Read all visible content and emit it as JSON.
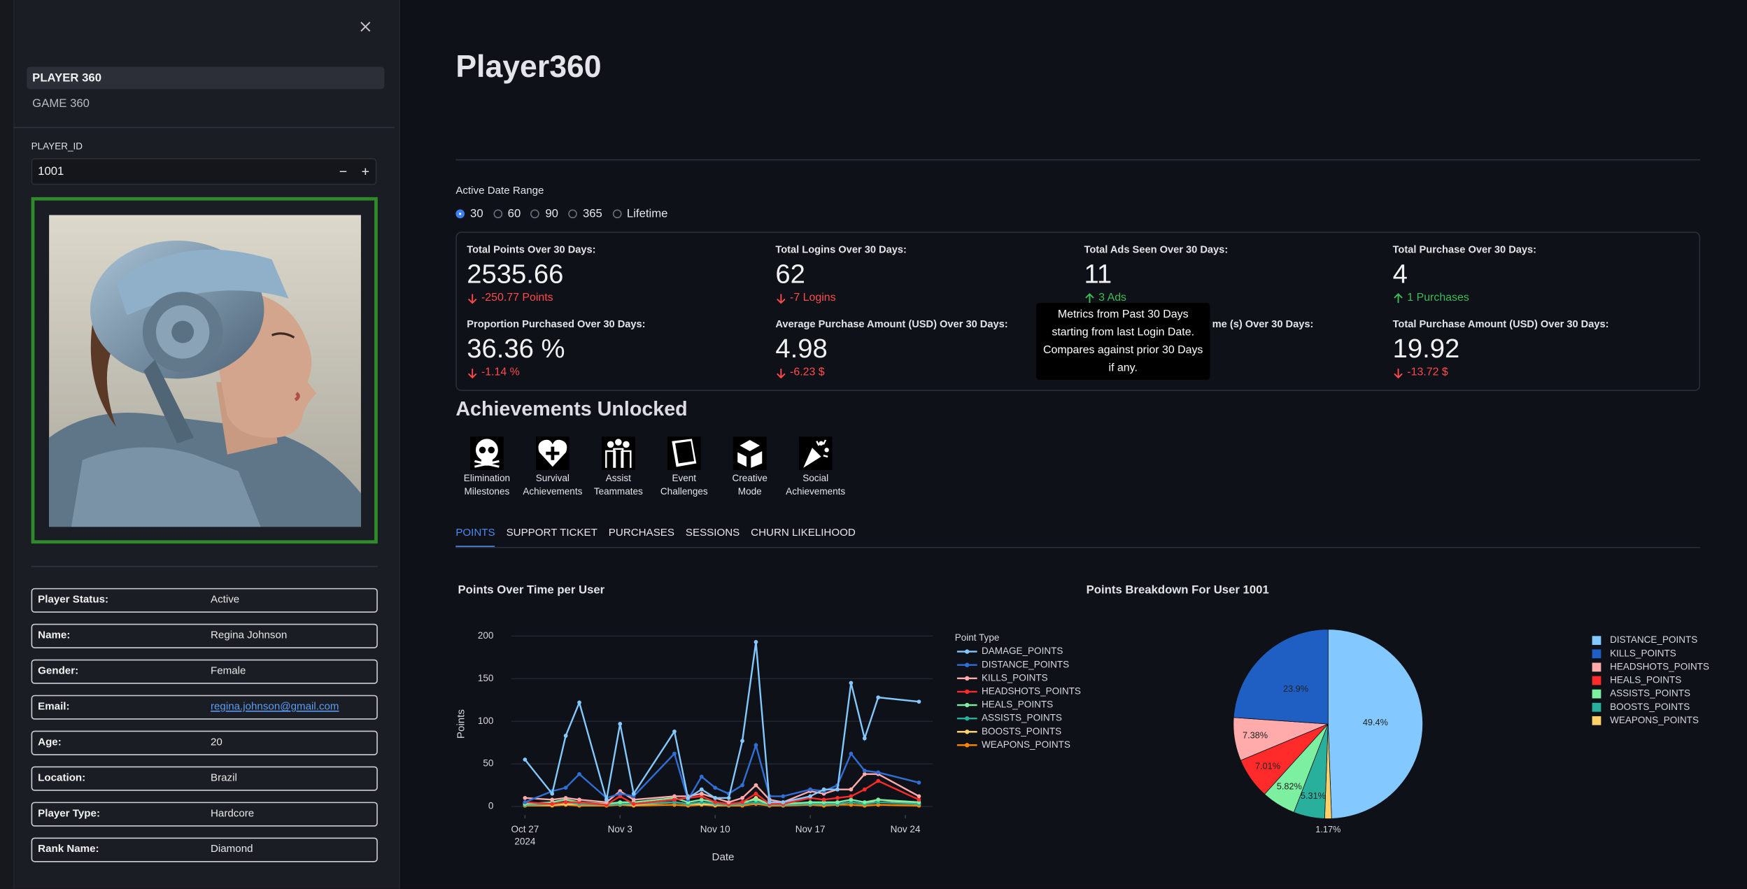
{
  "sidebar": {
    "nav": [
      "PLAYER 360",
      "GAME 360"
    ],
    "active_nav": 0,
    "player_id_label": "PLAYER_ID",
    "player_id": "1001",
    "details": [
      {
        "label": "Player Status:",
        "value": "Active"
      },
      {
        "label": "Name:",
        "value": "Regina Johnson"
      },
      {
        "label": "Gender:",
        "value": "Female"
      },
      {
        "label": "Email:",
        "value": "regina.johnson@gmail.com",
        "link": true
      },
      {
        "label": "Age:",
        "value": "20"
      },
      {
        "label": "Location:",
        "value": "Brazil"
      },
      {
        "label": "Player Type:",
        "value": "Hardcore"
      },
      {
        "label": "Rank Name:",
        "value": "Diamond"
      }
    ]
  },
  "main": {
    "title": "Player360",
    "date_range_label": "Active Date Range",
    "date_options": [
      "30",
      "60",
      "90",
      "365",
      "Lifetime"
    ],
    "date_range_selected": 0,
    "metrics": [
      {
        "label": "Total Points Over 30 Days:",
        "value": "2535.66",
        "delta": "-250.77 Points",
        "direction": "down"
      },
      {
        "label": "Total Logins Over 30 Days:",
        "value": "62",
        "delta": "-7 Logins",
        "direction": "down"
      },
      {
        "label": "Total Ads Seen Over 30 Days:",
        "value": "11",
        "delta": "3 Ads",
        "direction": "up"
      },
      {
        "label": "Total Purchase Over 30 Days:",
        "value": "4",
        "delta": "1 Purchases",
        "direction": "up"
      },
      {
        "label": "Proportion Purchased Over 30 Days:",
        "value": "36.36 %",
        "delta": "-1.14 %",
        "direction": "down"
      },
      {
        "label": "Average Purchase Amount (USD) Over 30 Days:",
        "value": "4.98",
        "delta": "-6.23 $",
        "direction": "down"
      },
      {
        "label": "me (s) Over 30 Days:"
      },
      {
        "label": "Total Purchase Amount (USD) Over 30 Days:",
        "value": "19.92",
        "delta": "-13.72 $",
        "direction": "down"
      }
    ],
    "tooltip": [
      "Metrics from Past 30 Days",
      "starting from last Login Date.",
      "Compares against prior 30 Days",
      "if any."
    ],
    "achievements_title": "Achievements Unlocked",
    "achievements": [
      [
        "Elimination",
        "Milestones"
      ],
      [
        "Survival",
        "Achievements"
      ],
      [
        "Assist",
        "Teammates"
      ],
      [
        "Event",
        "Challenges"
      ],
      [
        "Creative",
        "Mode"
      ],
      [
        "Social",
        "Achievements"
      ]
    ],
    "tabs": [
      "POINTS",
      "SUPPORT TICKET",
      "PURCHASES",
      "SESSIONS",
      "CHURN LIKELIHOOD"
    ],
    "active_tab": 0
  },
  "chart_data": [
    {
      "type": "line",
      "title": "Points Over Time per User",
      "x_label": "Date",
      "y_label": "Points",
      "legend_title": "Point Type",
      "x": [
        "2024-10-27",
        "2024-10-29",
        "2024-10-30",
        "2024-10-31",
        "2024-11-02",
        "2024-11-03",
        "2024-11-04",
        "2024-11-07",
        "2024-11-08",
        "2024-11-09",
        "2024-11-10",
        "2024-11-11",
        "2024-11-12",
        "2024-11-13",
        "2024-11-14",
        "2024-11-15",
        "2024-11-17",
        "2024-11-18",
        "2024-11-19",
        "2024-11-20",
        "2024-11-21",
        "2024-11-22",
        "2024-11-25"
      ],
      "xlim": [
        "2024-10-26",
        "2024-11-26"
      ],
      "xticks": [
        {
          "value": "2024-10-27",
          "label": "Oct 27",
          "sublabel": "2024"
        },
        {
          "value": "2024-11-03",
          "label": "Nov 3"
        },
        {
          "value": "2024-11-10",
          "label": "Nov 10"
        },
        {
          "value": "2024-11-17",
          "label": "Nov 17"
        },
        {
          "value": "2024-11-24",
          "label": "Nov 24"
        }
      ],
      "ylim": [
        -10,
        210
      ],
      "yticks": [
        0,
        50,
        100,
        150,
        200
      ],
      "grid": true,
      "series": [
        {
          "name": "DAMAGE_POINTS",
          "color": "#83c9ff",
          "values": [
            55,
            15,
            83,
            122,
            8,
            97,
            15,
            88,
            10,
            20,
            10,
            10,
            77,
            193,
            5,
            5,
            12,
            20,
            20,
            145,
            80,
            128,
            123
          ]
        },
        {
          "name": "DISTANCE_POINTS",
          "color": "#2f6fd6",
          "values": [
            5,
            18,
            22,
            38,
            10,
            15,
            12,
            62,
            8,
            35,
            22,
            15,
            25,
            72,
            12,
            12,
            20,
            18,
            25,
            62,
            42,
            40,
            28
          ]
        },
        {
          "name": "KILLS_POINTS",
          "color": "#ffabab",
          "values": [
            10,
            8,
            10,
            8,
            5,
            18,
            8,
            12,
            12,
            15,
            10,
            5,
            10,
            25,
            8,
            5,
            18,
            15,
            20,
            20,
            38,
            38,
            12
          ]
        },
        {
          "name": "HEADSHOTS_POINTS",
          "color": "#ff2b2b",
          "values": [
            5,
            3,
            5,
            5,
            2,
            12,
            3,
            8,
            10,
            12,
            5,
            3,
            5,
            15,
            3,
            3,
            10,
            8,
            10,
            12,
            20,
            30,
            8
          ]
        },
        {
          "name": "HEALS_POINTS",
          "color": "#7defa1",
          "values": [
            3,
            5,
            8,
            5,
            3,
            5,
            5,
            10,
            5,
            8,
            5,
            3,
            5,
            8,
            3,
            3,
            5,
            5,
            5,
            8,
            5,
            8,
            5
          ]
        },
        {
          "name": "ASSISTS_POINTS",
          "color": "#29b09d",
          "values": [
            2,
            3,
            5,
            3,
            2,
            3,
            3,
            5,
            3,
            5,
            3,
            2,
            3,
            5,
            2,
            2,
            3,
            3,
            3,
            5,
            3,
            5,
            3
          ]
        },
        {
          "name": "BOOSTS_POINTS",
          "color": "#ffd16a",
          "values": [
            3,
            2,
            3,
            3,
            2,
            3,
            2,
            5,
            3,
            3,
            2,
            3,
            3,
            10,
            2,
            2,
            3,
            3,
            3,
            5,
            3,
            8,
            3
          ]
        },
        {
          "name": "WEAPONS_POINTS",
          "color": "#ff8700",
          "values": [
            1,
            1,
            2,
            1,
            1,
            2,
            1,
            2,
            1,
            2,
            1,
            1,
            1,
            3,
            1,
            1,
            2,
            1,
            2,
            2,
            1,
            2,
            1
          ]
        }
      ]
    },
    {
      "type": "pie",
      "title": "Points Breakdown For User 1001",
      "categories": [
        "DISTANCE_POINTS",
        "KILLS_POINTS",
        "HEADSHOTS_POINTS",
        "HEALS_POINTS",
        "ASSISTS_POINTS",
        "BOOSTS_POINTS",
        "WEAPONS_POINTS"
      ],
      "values": [
        49.4,
        23.9,
        7.38,
        7.01,
        5.82,
        5.31,
        1.17
      ],
      "value_labels": [
        "49.4%",
        "23.9%",
        "7.38%",
        "7.01%",
        "5.82%",
        "5.31%",
        "1.17%"
      ],
      "colors": [
        "#83c9ff",
        "#1f5fc4",
        "#ffabab",
        "#ff2b2b",
        "#7defa1",
        "#29b09d",
        "#ffd16a"
      ]
    }
  ]
}
